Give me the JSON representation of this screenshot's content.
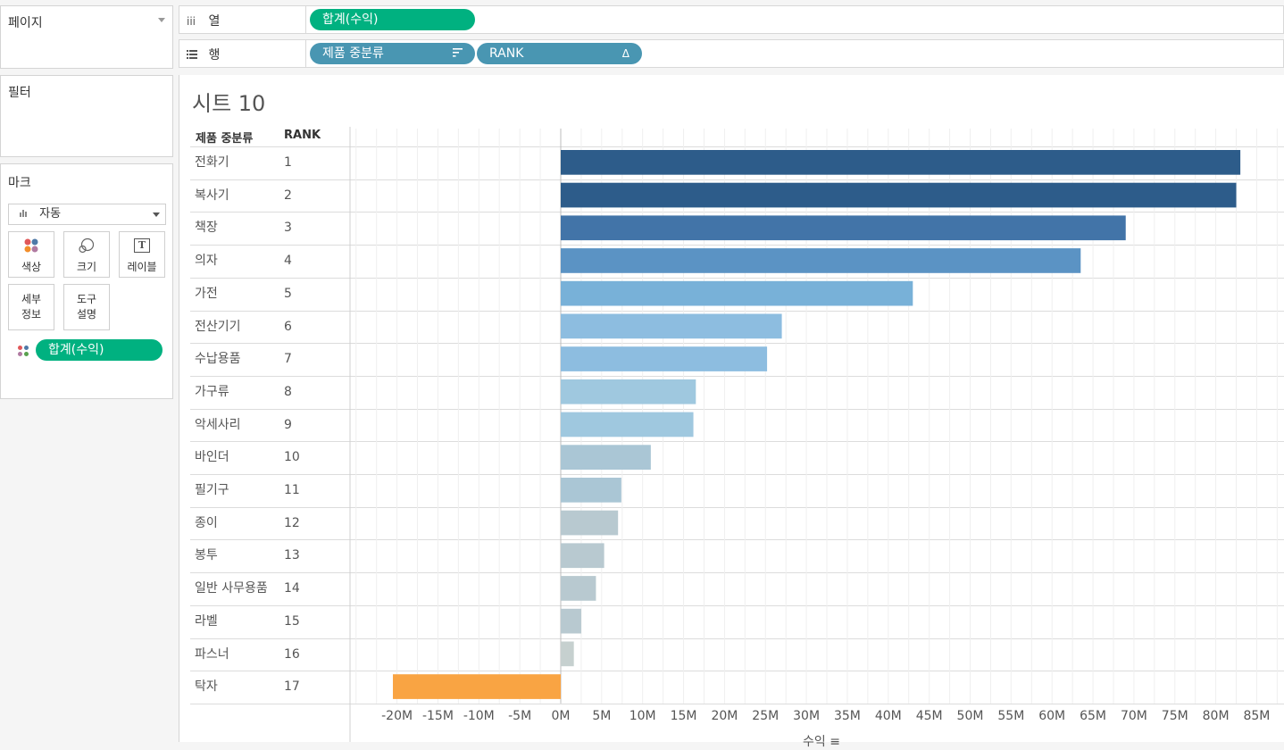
{
  "pages_shelf": {
    "title": "페이지"
  },
  "filters_shelf": {
    "title": "필터"
  },
  "marks": {
    "title": "마크",
    "mark_type": "자동",
    "mark_type_icon": "bar-chart-icon",
    "cards": {
      "color": "색상",
      "size": "크기",
      "label": "레이블",
      "detail_line1": "세부",
      "detail_line2": "정보",
      "tooltip_line1": "도구",
      "tooltip_line2": "설명"
    },
    "color_field": "합계(수익)"
  },
  "columns_shelf": {
    "icon_text": "iii",
    "label": "열",
    "pill": "합계(수익)"
  },
  "rows_shelf": {
    "label": "행",
    "pills": [
      "제품 중분류",
      "RANK"
    ],
    "rank_pill_symbol": "Δ"
  },
  "sheet": {
    "title": "시트 10"
  },
  "table_headers": {
    "category": "제품 중분류",
    "rank": "RANK"
  },
  "colors": {
    "green_pill": "#00b180",
    "blue_pill": "#4996b2",
    "negative_bar": "#f9a443"
  },
  "chart_data": {
    "type": "bar",
    "orientation": "horizontal",
    "categories": [
      "전화기",
      "복사기",
      "책장",
      "의자",
      "가전",
      "전산기기",
      "수납용품",
      "가구류",
      "악세사리",
      "바인더",
      "필기구",
      "종이",
      "봉투",
      "일반 사무용품",
      "라벨",
      "파스너",
      "탁자"
    ],
    "ranks": [
      "1",
      "2",
      "3",
      "4",
      "5",
      "6",
      "7",
      "8",
      "9",
      "10",
      "11",
      "12",
      "13",
      "14",
      "15",
      "16",
      "17"
    ],
    "series": [
      {
        "name": "합계(수익)",
        "values": [
          83.0,
          82.5,
          69.0,
          63.5,
          43.0,
          27.0,
          25.2,
          16.5,
          16.2,
          11.0,
          7.4,
          7.0,
          5.3,
          4.3,
          2.5,
          1.6,
          -20.5
        ]
      }
    ],
    "x_ticks": [
      "-20M",
      "-15M",
      "-10M",
      "-5M",
      "0M",
      "5M",
      "10M",
      "15M",
      "20M",
      "25M",
      "30M",
      "35M",
      "40M",
      "45M",
      "50M",
      "55M",
      "60M",
      "65M",
      "70M",
      "75M",
      "80M",
      "85M"
    ],
    "xlabel": "수익 ≡",
    "xlim": [
      -25,
      90
    ],
    "units": "M"
  }
}
